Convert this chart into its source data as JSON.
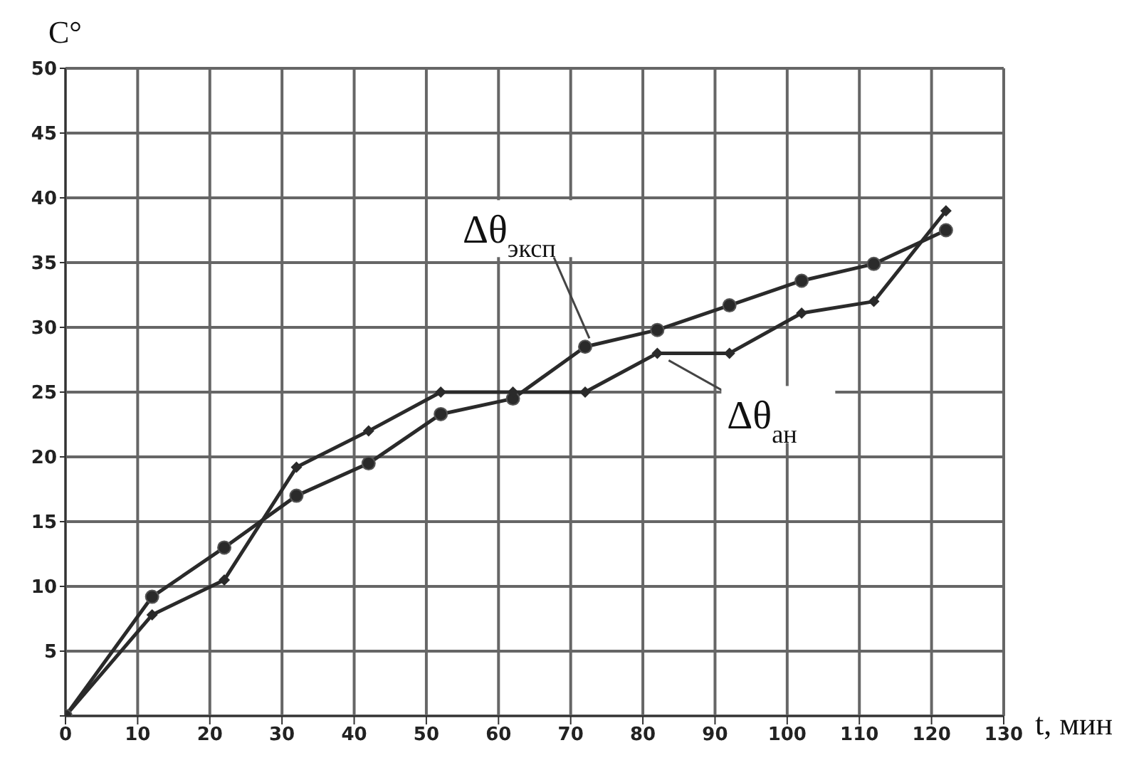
{
  "chart_data": {
    "type": "line",
    "xlabel": "t, мин",
    "ylabel": "C°",
    "xlim": [
      0,
      130
    ],
    "xticks": [
      0,
      10,
      20,
      30,
      40,
      50,
      60,
      70,
      80,
      90,
      100,
      110,
      120,
      130
    ],
    "ylim": [
      0,
      50
    ],
    "yticks": [
      {
        "value": 0,
        "label": null
      },
      5,
      10,
      15,
      20,
      25,
      30,
      35,
      40,
      45,
      50
    ],
    "grid": true,
    "line_style": "solid",
    "series": [
      {
        "name": "Δθ$_{эксп}$",
        "color": "#2a2a2a",
        "marker": "circle",
        "x": [
          0,
          12,
          22,
          32,
          42,
          52,
          62,
          72,
          82,
          92,
          102,
          112,
          122
        ],
        "values": [
          0,
          9.2,
          13,
          17,
          19.5,
          23.3,
          24.5,
          28.5,
          29.8,
          31.7,
          33.6,
          34.9,
          37.5
        ]
      },
      {
        "name": "Δθ$_{ан}$",
        "color": "#2a2a2a",
        "marker": "diamond",
        "x": [
          0,
          12,
          22,
          32,
          42,
          52,
          62,
          72,
          82,
          92,
          102,
          112,
          122
        ],
        "values": [
          0,
          7.8,
          10.5,
          19.2,
          22,
          25,
          25,
          25,
          28,
          28,
          31.1,
          32,
          39
        ]
      }
    ]
  }
}
